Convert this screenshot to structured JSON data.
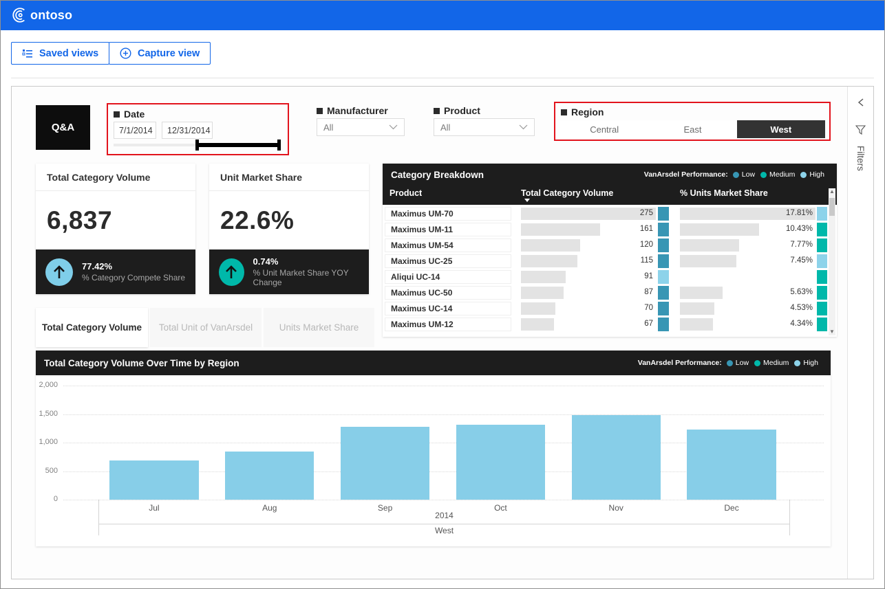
{
  "topbar": {
    "brand_full": "Contoso",
    "brand_text": "ontoso"
  },
  "toolbar": {
    "saved_views_label": "Saved views",
    "capture_view_label": "Capture view"
  },
  "qna_label": "Q&A",
  "slicers": {
    "date": {
      "label": "Date",
      "start_value": "7/1/2014",
      "end_value": "12/31/2014"
    },
    "manufacturer": {
      "label": "Manufacturer",
      "value": "All"
    },
    "product": {
      "label": "Product",
      "value": "All"
    },
    "region": {
      "label": "Region",
      "options": [
        "Central",
        "East",
        "West"
      ],
      "selected": "West"
    }
  },
  "kpis": [
    {
      "title": "Total Category Volume",
      "value": "6,837",
      "delta": "77.42%",
      "delta_label": "% Category Compete Share",
      "indicator_color": "#7FCEE9"
    },
    {
      "title": "Unit Market Share",
      "value": "22.6%",
      "delta": "0.74%",
      "delta_label": "% Unit Market Share YOY Change",
      "indicator_color": "#00B8AA"
    }
  ],
  "legend": {
    "label": "VanArsdel Performance:",
    "items": [
      {
        "name": "Low",
        "color": "#3896B4"
      },
      {
        "name": "Medium",
        "color": "#00B8AA"
      },
      {
        "name": "High",
        "color": "#8DD3EA"
      }
    ],
    "level_colors": {
      "low": "#3896B4",
      "medium": "#00B8AA",
      "high": "#8DD3EA"
    }
  },
  "table": {
    "title": "Category Breakdown",
    "columns": [
      "Product",
      "Total Category Volume",
      "% Units Market Share"
    ],
    "sort": {
      "column": "Total Category Volume",
      "direction": "desc"
    },
    "rows": [
      {
        "product": "Maximus UM-70",
        "volume": 275,
        "volume_level": "low",
        "share_label": "17.81%",
        "share_pct": 17.81,
        "share_level": "high"
      },
      {
        "product": "Maximus UM-11",
        "volume": 161,
        "volume_level": "low",
        "share_label": "10.43%",
        "share_pct": 10.43,
        "share_level": "medium"
      },
      {
        "product": "Maximus UM-54",
        "volume": 120,
        "volume_level": "low",
        "share_label": "7.77%",
        "share_pct": 7.77,
        "share_level": "medium"
      },
      {
        "product": "Maximus UC-25",
        "volume": 115,
        "volume_level": "low",
        "share_label": "7.45%",
        "share_pct": 7.45,
        "share_level": "high"
      },
      {
        "product": "Aliqui UC-14",
        "volume": 91,
        "volume_level": "high",
        "share_label": "",
        "share_pct": null,
        "share_level": "medium"
      },
      {
        "product": "Maximus UC-50",
        "volume": 87,
        "volume_level": "low",
        "share_label": "5.63%",
        "share_pct": 5.63,
        "share_level": "medium"
      },
      {
        "product": "Maximus UC-14",
        "volume": 70,
        "volume_level": "low",
        "share_label": "4.53%",
        "share_pct": 4.53,
        "share_level": "medium"
      },
      {
        "product": "Maximus UM-12",
        "volume": 67,
        "volume_level": "low",
        "share_label": "4.34%",
        "share_pct": 4.34,
        "share_level": "medium"
      }
    ]
  },
  "tabs": [
    {
      "label": "Total Category Volume",
      "active": true
    },
    {
      "label": "Total Unit of VanArsdel",
      "active": false
    },
    {
      "label": "Units Market Share",
      "active": false
    }
  ],
  "chart_data": {
    "type": "bar",
    "title": "Total Category Volume Over Time by Region",
    "categories": [
      "Jul",
      "Aug",
      "Sep",
      "Oct",
      "Nov",
      "Dec"
    ],
    "values": [
      690,
      845,
      1275,
      1315,
      1480,
      1232
    ],
    "x_hierarchy": [
      "2014",
      "West"
    ],
    "xlabel": "",
    "ylabel": "",
    "ylim": [
      0,
      2000
    ],
    "yticks": [
      0,
      500,
      1000,
      1500,
      2000
    ],
    "ytick_labels": [
      "0",
      "500",
      "1,000",
      "1,500",
      "2,000"
    ],
    "bar_color": "#87CEE8",
    "grid": "dotted horizontal",
    "legend_position": "top-right"
  },
  "filters_pane": {
    "label": "Filters"
  }
}
